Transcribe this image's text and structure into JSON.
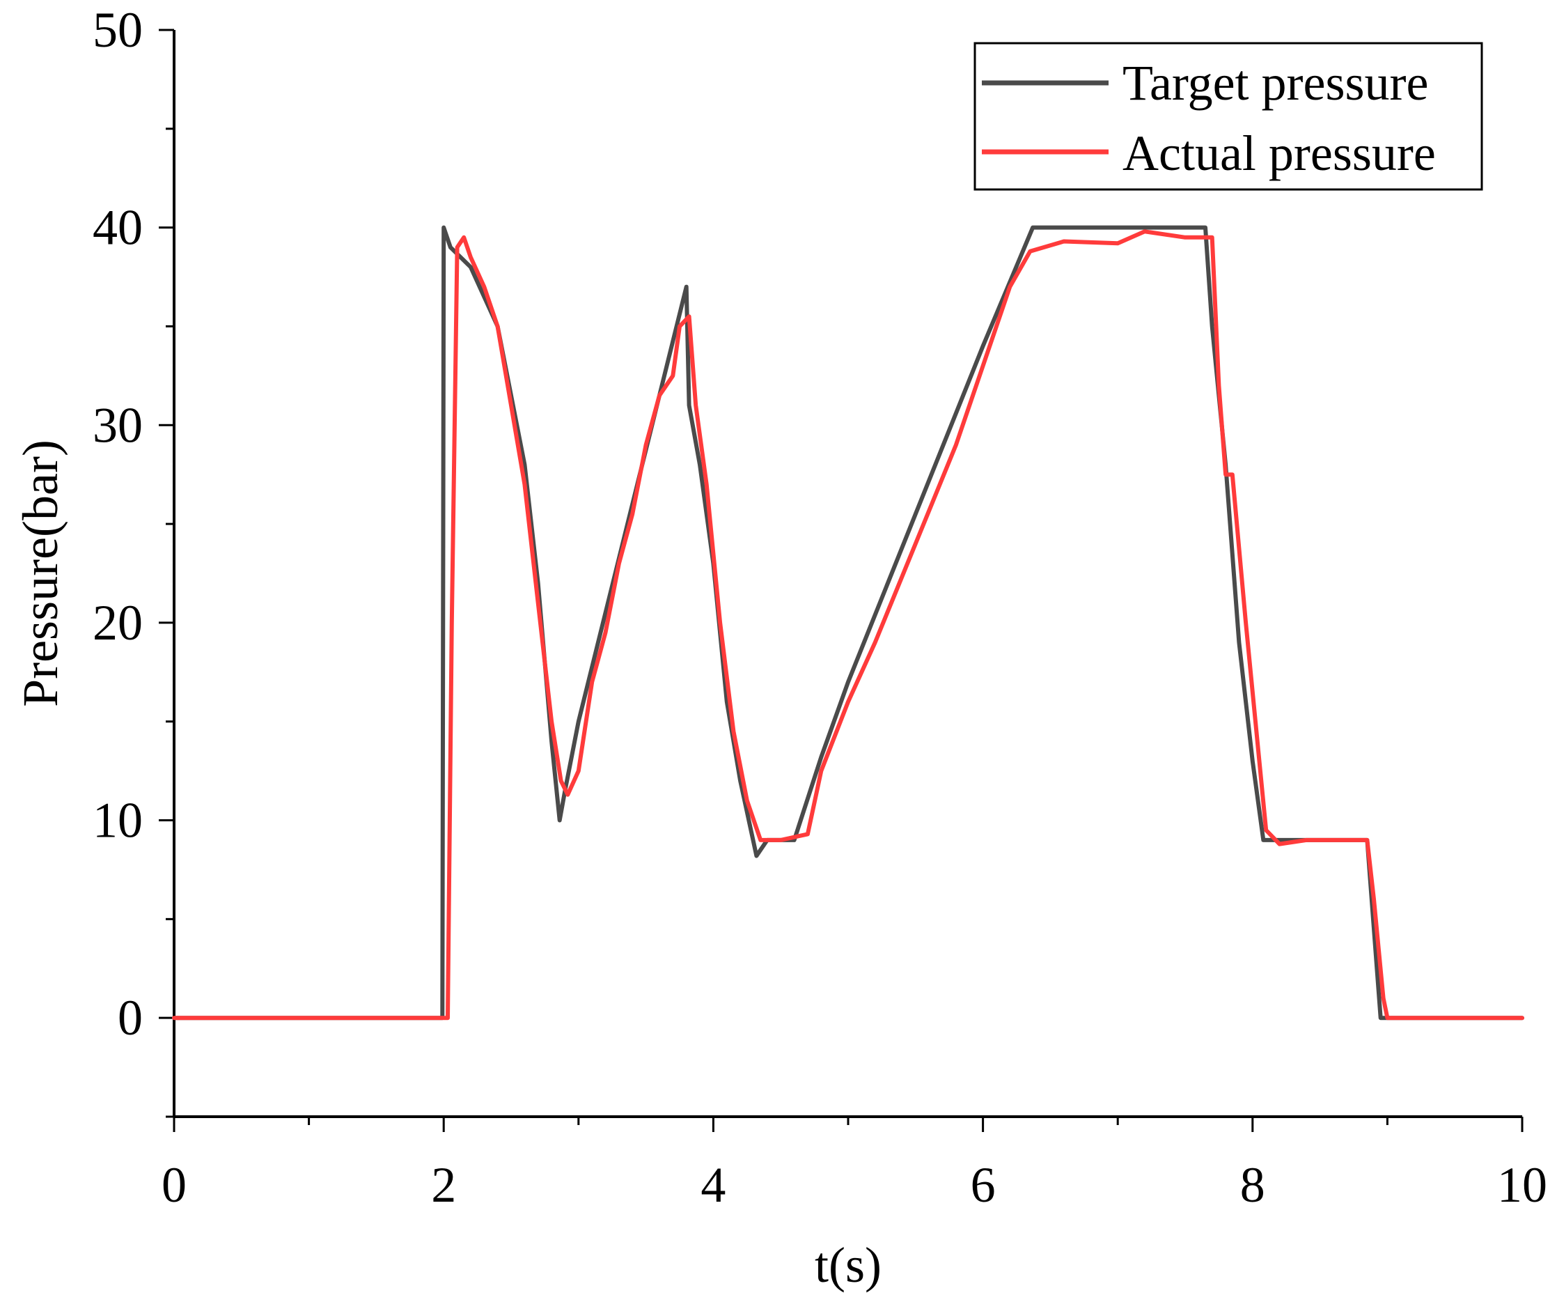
{
  "chart_data": {
    "type": "line",
    "title": "",
    "xlabel": "t(s)",
    "ylabel": "Pressure(bar)",
    "xlim": [
      0,
      10
    ],
    "ylim": [
      -5,
      50
    ],
    "x_ticks": [
      0,
      2,
      4,
      6,
      8,
      10
    ],
    "x_tick_labels": [
      "0",
      "2",
      "4",
      "6",
      "8",
      "10"
    ],
    "y_ticks": [
      0,
      10,
      20,
      30,
      40,
      50
    ],
    "y_tick_labels": [
      "0",
      "10",
      "20",
      "30",
      "40",
      "50"
    ],
    "grid": false,
    "legend_position": "top-right",
    "series": [
      {
        "name": "Target pressure",
        "color": "#4a4a4a",
        "points": [
          [
            0,
            0
          ],
          [
            1.99,
            0
          ],
          [
            2.0,
            40.0
          ],
          [
            2.05,
            39.0
          ],
          [
            2.2,
            38.0
          ],
          [
            2.4,
            35.0
          ],
          [
            2.6,
            28.0
          ],
          [
            2.7,
            22.0
          ],
          [
            2.8,
            14.0
          ],
          [
            2.86,
            10.0
          ],
          [
            2.9,
            11.5
          ],
          [
            3.0,
            15.0
          ],
          [
            3.2,
            20.5
          ],
          [
            3.4,
            26.0
          ],
          [
            3.6,
            31.5
          ],
          [
            3.8,
            37.0
          ],
          [
            3.82,
            31.0
          ],
          [
            3.9,
            28.0
          ],
          [
            4.0,
            23.0
          ],
          [
            4.1,
            16.0
          ],
          [
            4.2,
            12.0
          ],
          [
            4.32,
            8.2
          ],
          [
            4.4,
            9.0
          ],
          [
            4.6,
            9.0
          ],
          [
            4.8,
            13.2
          ],
          [
            5.0,
            17.0
          ],
          [
            5.5,
            25.5
          ],
          [
            6.0,
            34.0
          ],
          [
            6.37,
            40.0
          ],
          [
            7.65,
            40.0
          ],
          [
            7.7,
            35.0
          ],
          [
            7.8,
            28.0
          ],
          [
            7.9,
            19.0
          ],
          [
            8.0,
            13.0
          ],
          [
            8.08,
            9.0
          ],
          [
            8.85,
            9.0
          ],
          [
            8.95,
            0.0
          ],
          [
            10,
            0
          ]
        ]
      },
      {
        "name": "Actual pressure",
        "color": "#ff3b3b",
        "points": [
          [
            0,
            0
          ],
          [
            2.03,
            0
          ],
          [
            2.06,
            20.0
          ],
          [
            2.1,
            39.0
          ],
          [
            2.15,
            39.5
          ],
          [
            2.2,
            38.5
          ],
          [
            2.3,
            37.0
          ],
          [
            2.4,
            35.0
          ],
          [
            2.5,
            31.0
          ],
          [
            2.6,
            27.0
          ],
          [
            2.7,
            21.0
          ],
          [
            2.8,
            15.0
          ],
          [
            2.87,
            12.0
          ],
          [
            2.92,
            11.3
          ],
          [
            3.0,
            12.5
          ],
          [
            3.1,
            17.0
          ],
          [
            3.2,
            19.5
          ],
          [
            3.3,
            23.0
          ],
          [
            3.4,
            25.5
          ],
          [
            3.5,
            29.0
          ],
          [
            3.6,
            31.5
          ],
          [
            3.7,
            32.5
          ],
          [
            3.75,
            35.0
          ],
          [
            3.82,
            35.5
          ],
          [
            3.87,
            31.0
          ],
          [
            3.95,
            27.0
          ],
          [
            4.05,
            20.0
          ],
          [
            4.15,
            14.5
          ],
          [
            4.25,
            11.0
          ],
          [
            4.35,
            9.0
          ],
          [
            4.5,
            9.0
          ],
          [
            4.7,
            9.3
          ],
          [
            4.8,
            12.5
          ],
          [
            5.0,
            16.0
          ],
          [
            5.2,
            19.0
          ],
          [
            5.5,
            24.0
          ],
          [
            5.8,
            29.0
          ],
          [
            6.0,
            33.0
          ],
          [
            6.2,
            37.0
          ],
          [
            6.35,
            38.8
          ],
          [
            6.6,
            39.3
          ],
          [
            7.0,
            39.2
          ],
          [
            7.2,
            39.8
          ],
          [
            7.5,
            39.5
          ],
          [
            7.7,
            39.5
          ],
          [
            7.75,
            32.0
          ],
          [
            7.8,
            27.5
          ],
          [
            7.85,
            27.5
          ],
          [
            7.95,
            20.0
          ],
          [
            8.05,
            13.0
          ],
          [
            8.1,
            9.5
          ],
          [
            8.2,
            8.8
          ],
          [
            8.4,
            9.0
          ],
          [
            8.85,
            9.0
          ],
          [
            8.9,
            6.0
          ],
          [
            8.97,
            1.0
          ],
          [
            9.0,
            0.0
          ],
          [
            10,
            0
          ]
        ]
      }
    ]
  }
}
